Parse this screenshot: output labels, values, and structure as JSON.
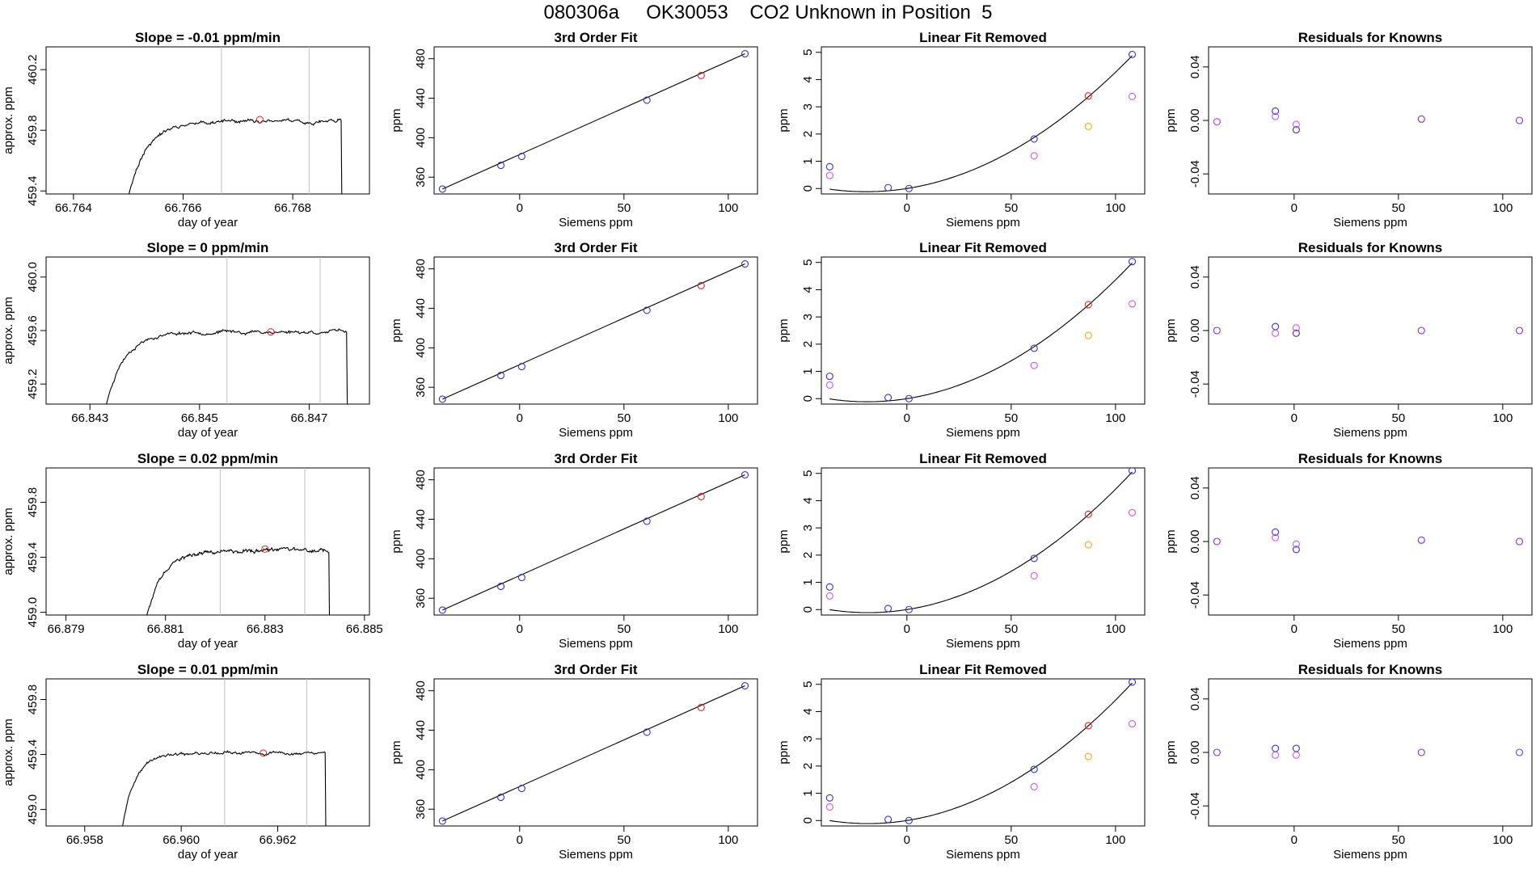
{
  "header": {
    "title": "080306a     OK30053    CO2 Unknown in Position  5"
  },
  "colors": {
    "axis": "#000000",
    "line": "#000000",
    "vline": "#bfbfbf",
    "blue": "#3232cc",
    "red": "#e0261f",
    "magenta": "#d455e8",
    "orange": "#f5a623",
    "purple": "#7a2be8"
  },
  "chart_data": [
    {
      "type": "line",
      "panel": "time-series",
      "row": 0,
      "title": "Slope =  -0.01  ppm/min",
      "xlabel": "day of year",
      "ylabel": "approx. ppm",
      "xlim": [
        66.7635,
        66.7694
      ],
      "ylim": [
        459.38,
        460.35
      ],
      "xticks": [
        66.764,
        66.766,
        66.768
      ],
      "xtick_labels": [
        "66.764",
        "66.766",
        "66.768"
      ],
      "yticks": [
        459.4,
        459.8,
        460.2
      ],
      "ytick_labels": [
        "459.4",
        "459.8",
        "460.2"
      ],
      "trace": {
        "start": 66.7649,
        "end": 66.7689,
        "rise_len": 0.0011,
        "level": 459.86,
        "noise": 0.015,
        "seed": 11
      },
      "vlines": [
        66.7667,
        66.7683
      ],
      "marker": {
        "x": 66.7674,
        "y": 459.87
      }
    },
    {
      "type": "line",
      "panel": "time-series",
      "row": 1,
      "title": "Slope =  0  ppm/min",
      "xlabel": "day of year",
      "ylabel": "approx. ppm",
      "xlim": [
        66.8422,
        66.8481
      ],
      "ylim": [
        459.05,
        460.15
      ],
      "xticks": [
        66.843,
        66.845,
        66.847
      ],
      "xtick_labels": [
        "66.843",
        "66.845",
        "66.847"
      ],
      "yticks": [
        459.2,
        459.6,
        460.0
      ],
      "ytick_labels": [
        "459.2",
        "459.6",
        "460.0"
      ],
      "trace": {
        "start": 66.8432,
        "end": 66.8477,
        "rise_len": 0.0011,
        "level": 459.59,
        "noise": 0.016,
        "seed": 23
      },
      "vlines": [
        66.8455,
        66.8472
      ],
      "marker": {
        "x": 66.8463,
        "y": 459.59
      }
    },
    {
      "type": "line",
      "panel": "time-series",
      "row": 2,
      "title": "Slope =  0.02  ppm/min",
      "xlabel": "day of year",
      "ylabel": "approx. ppm",
      "xlim": [
        66.8786,
        66.8851
      ],
      "ylim": [
        458.98,
        460.05
      ],
      "xticks": [
        66.879,
        66.881,
        66.883,
        66.885
      ],
      "xtick_labels": [
        "66.879",
        "66.881",
        "66.883",
        "66.885"
      ],
      "yticks": [
        459.0,
        459.4,
        459.8
      ],
      "ytick_labels": [
        "459.0",
        "459.4",
        "459.8"
      ],
      "trace": {
        "start": 66.8805,
        "end": 66.8843,
        "rise_len": 0.0012,
        "level": 459.45,
        "noise": 0.018,
        "seed": 37
      },
      "vlines": [
        66.8821,
        66.8838
      ],
      "marker": {
        "x": 66.883,
        "y": 459.46
      }
    },
    {
      "type": "line",
      "panel": "time-series",
      "row": 3,
      "title": "Slope =  0.01  ppm/min",
      "xlabel": "day of year",
      "ylabel": "approx. ppm",
      "xlim": [
        66.9572,
        66.9639
      ],
      "ylim": [
        458.88,
        459.95
      ],
      "xticks": [
        66.958,
        66.96,
        66.962
      ],
      "xtick_labels": [
        "66.958",
        "66.960",
        "66.962"
      ],
      "yticks": [
        459.0,
        459.4,
        459.8
      ],
      "ytick_labels": [
        "459.0",
        "459.4",
        "459.8"
      ],
      "trace": {
        "start": 66.9587,
        "end": 66.963,
        "rise_len": 0.0009,
        "level": 459.41,
        "noise": 0.013,
        "seed": 41
      },
      "vlines": [
        66.9609,
        66.9626
      ],
      "marker": {
        "x": 66.9617,
        "y": 459.41
      }
    },
    {
      "type": "scatter",
      "panel": "third-order-fit",
      "row": 0,
      "title": "3rd Order Fit",
      "xlabel": "Siemens ppm",
      "ylabel": "ppm",
      "xlim": [
        -41,
        114
      ],
      "ylim": [
        343,
        492
      ],
      "xticks": [
        0,
        50,
        100
      ],
      "yticks": [
        360,
        400,
        440,
        480
      ],
      "fit_line": {
        "x": [
          -37,
          108
        ],
        "y": [
          348,
          485
        ]
      },
      "points": [
        {
          "x": -37,
          "y": 348,
          "color": "blue"
        },
        {
          "x": -9,
          "y": 372,
          "color": "blue"
        },
        {
          "x": 1,
          "y": 381,
          "color": "blue"
        },
        {
          "x": 61,
          "y": 438,
          "color": "blue"
        },
        {
          "x": 87,
          "y": 463,
          "color": "red"
        },
        {
          "x": 108,
          "y": 485,
          "color": "blue"
        }
      ]
    },
    {
      "type": "scatter",
      "panel": "third-order-fit",
      "row": 1,
      "title": "3rd Order Fit",
      "xlabel": "Siemens ppm",
      "ylabel": "ppm",
      "xlim": [
        -41,
        114
      ],
      "ylim": [
        343,
        492
      ],
      "xticks": [
        0,
        50,
        100
      ],
      "yticks": [
        360,
        400,
        440,
        480
      ],
      "fit_line": {
        "x": [
          -37,
          108
        ],
        "y": [
          348,
          485
        ]
      },
      "points": [
        {
          "x": -37,
          "y": 348,
          "color": "blue"
        },
        {
          "x": -9,
          "y": 372,
          "color": "blue"
        },
        {
          "x": 1,
          "y": 381,
          "color": "blue"
        },
        {
          "x": 61,
          "y": 438,
          "color": "blue"
        },
        {
          "x": 87,
          "y": 463,
          "color": "red"
        },
        {
          "x": 108,
          "y": 485,
          "color": "blue"
        }
      ]
    },
    {
      "type": "scatter",
      "panel": "third-order-fit",
      "row": 2,
      "title": "3rd Order Fit",
      "xlabel": "Siemens ppm",
      "ylabel": "ppm",
      "xlim": [
        -41,
        114
      ],
      "ylim": [
        343,
        492
      ],
      "xticks": [
        0,
        50,
        100
      ],
      "yticks": [
        360,
        400,
        440,
        480
      ],
      "fit_line": {
        "x": [
          -37,
          108
        ],
        "y": [
          348,
          485
        ]
      },
      "points": [
        {
          "x": -37,
          "y": 348,
          "color": "blue"
        },
        {
          "x": -9,
          "y": 372,
          "color": "blue"
        },
        {
          "x": 1,
          "y": 381,
          "color": "blue"
        },
        {
          "x": 61,
          "y": 438,
          "color": "blue"
        },
        {
          "x": 87,
          "y": 463,
          "color": "red"
        },
        {
          "x": 108,
          "y": 485,
          "color": "blue"
        }
      ]
    },
    {
      "type": "scatter",
      "panel": "third-order-fit",
      "row": 3,
      "title": "3rd Order Fit",
      "xlabel": "Siemens ppm",
      "ylabel": "ppm",
      "xlim": [
        -41,
        114
      ],
      "ylim": [
        343,
        492
      ],
      "xticks": [
        0,
        50,
        100
      ],
      "yticks": [
        360,
        400,
        440,
        480
      ],
      "fit_line": {
        "x": [
          -37,
          108
        ],
        "y": [
          348,
          485
        ]
      },
      "points": [
        {
          "x": -37,
          "y": 348,
          "color": "blue"
        },
        {
          "x": -9,
          "y": 372,
          "color": "blue"
        },
        {
          "x": 1,
          "y": 381,
          "color": "blue"
        },
        {
          "x": 61,
          "y": 438,
          "color": "blue"
        },
        {
          "x": 87,
          "y": 463,
          "color": "red"
        },
        {
          "x": 108,
          "y": 485,
          "color": "blue"
        }
      ]
    },
    {
      "type": "scatter",
      "panel": "linear-fit-removed",
      "row": 0,
      "title": "Linear Fit Removed",
      "xlabel": "Siemens ppm",
      "ylabel": "ppm",
      "xlim": [
        -41,
        114
      ],
      "ylim": [
        -0.2,
        5.2
      ],
      "xticks": [
        0,
        50,
        100
      ],
      "yticks": [
        0,
        1,
        2,
        3,
        4,
        5
      ],
      "curve": {
        "coef": [
          0.0,
          0.012,
          0.000307
        ],
        "x_range": [
          -37,
          108
        ]
      },
      "points": [
        {
          "x": -37,
          "y": 0.8,
          "color": "blue"
        },
        {
          "x": -9,
          "y": 0.03,
          "color": "blue"
        },
        {
          "x": 1,
          "y": 0.0,
          "color": "blue"
        },
        {
          "x": 61,
          "y": 1.82,
          "color": "blue"
        },
        {
          "x": 108,
          "y": 4.92,
          "color": "blue"
        },
        {
          "x": 87,
          "y": 3.4,
          "color": "red"
        },
        {
          "x": -37,
          "y": 0.48,
          "color": "magenta"
        },
        {
          "x": 61,
          "y": 1.2,
          "color": "magenta"
        },
        {
          "x": 108,
          "y": 3.38,
          "color": "magenta"
        },
        {
          "x": 87,
          "y": 2.28,
          "color": "orange"
        }
      ]
    },
    {
      "type": "scatter",
      "panel": "linear-fit-removed",
      "row": 1,
      "title": "Linear Fit Removed",
      "xlabel": "Siemens ppm",
      "ylabel": "ppm",
      "xlim": [
        -41,
        114
      ],
      "ylim": [
        -0.2,
        5.2
      ],
      "xticks": [
        0,
        50,
        100
      ],
      "yticks": [
        0,
        1,
        2,
        3,
        4,
        5
      ],
      "curve": {
        "coef": [
          0.0,
          0.012,
          0.000316
        ],
        "x_range": [
          -37,
          108
        ]
      },
      "points": [
        {
          "x": -37,
          "y": 0.82,
          "color": "blue"
        },
        {
          "x": -9,
          "y": 0.04,
          "color": "blue"
        },
        {
          "x": 1,
          "y": 0.0,
          "color": "blue"
        },
        {
          "x": 61,
          "y": 1.85,
          "color": "blue"
        },
        {
          "x": 108,
          "y": 5.03,
          "color": "blue"
        },
        {
          "x": 87,
          "y": 3.45,
          "color": "red"
        },
        {
          "x": -37,
          "y": 0.5,
          "color": "magenta"
        },
        {
          "x": 61,
          "y": 1.22,
          "color": "magenta"
        },
        {
          "x": 108,
          "y": 3.48,
          "color": "magenta"
        },
        {
          "x": 87,
          "y": 2.32,
          "color": "orange"
        }
      ]
    },
    {
      "type": "scatter",
      "panel": "linear-fit-removed",
      "row": 2,
      "title": "Linear Fit Removed",
      "xlabel": "Siemens ppm",
      "ylabel": "ppm",
      "xlim": [
        -41,
        114
      ],
      "ylim": [
        -0.2,
        5.2
      ],
      "xticks": [
        0,
        50,
        100
      ],
      "yticks": [
        0,
        1,
        2,
        3,
        4,
        5
      ],
      "curve": {
        "coef": [
          0.0,
          0.012,
          0.000322
        ],
        "x_range": [
          -37,
          108
        ]
      },
      "points": [
        {
          "x": -37,
          "y": 0.83,
          "color": "blue"
        },
        {
          "x": -9,
          "y": 0.04,
          "color": "blue"
        },
        {
          "x": 1,
          "y": 0.0,
          "color": "blue"
        },
        {
          "x": 61,
          "y": 1.88,
          "color": "blue"
        },
        {
          "x": 108,
          "y": 5.1,
          "color": "blue"
        },
        {
          "x": 87,
          "y": 3.5,
          "color": "red"
        },
        {
          "x": -37,
          "y": 0.5,
          "color": "magenta"
        },
        {
          "x": 61,
          "y": 1.24,
          "color": "magenta"
        },
        {
          "x": 108,
          "y": 3.56,
          "color": "magenta"
        },
        {
          "x": 87,
          "y": 2.38,
          "color": "orange"
        }
      ]
    },
    {
      "type": "scatter",
      "panel": "linear-fit-removed",
      "row": 3,
      "title": "Linear Fit Removed",
      "xlabel": "Siemens ppm",
      "ylabel": "ppm",
      "xlim": [
        -41,
        114
      ],
      "ylim": [
        -0.2,
        5.2
      ],
      "xticks": [
        0,
        50,
        100
      ],
      "yticks": [
        0,
        1,
        2,
        3,
        4,
        5
      ],
      "curve": {
        "coef": [
          0.0,
          0.012,
          0.000322
        ],
        "x_range": [
          -37,
          108
        ]
      },
      "points": [
        {
          "x": -37,
          "y": 0.83,
          "color": "blue"
        },
        {
          "x": -9,
          "y": 0.04,
          "color": "blue"
        },
        {
          "x": 1,
          "y": 0.0,
          "color": "blue"
        },
        {
          "x": 61,
          "y": 1.88,
          "color": "blue"
        },
        {
          "x": 108,
          "y": 5.08,
          "color": "blue"
        },
        {
          "x": 87,
          "y": 3.48,
          "color": "red"
        },
        {
          "x": -37,
          "y": 0.5,
          "color": "magenta"
        },
        {
          "x": 61,
          "y": 1.24,
          "color": "magenta"
        },
        {
          "x": 108,
          "y": 3.55,
          "color": "magenta"
        },
        {
          "x": 87,
          "y": 2.35,
          "color": "orange"
        }
      ]
    },
    {
      "type": "scatter",
      "panel": "residuals",
      "row": 0,
      "title": "Residuals for Knowns",
      "xlabel": "Siemens ppm",
      "ylabel": "ppm",
      "xlim": [
        -41,
        114
      ],
      "ylim": [
        -0.055,
        0.055
      ],
      "xticks": [
        0,
        50,
        100
      ],
      "yticks": [
        -0.04,
        0.0,
        0.04
      ],
      "ytick_labels": [
        "-0.04",
        "0.00",
        "0.04"
      ],
      "points": [
        {
          "x": -37,
          "y": -0.001,
          "color": "blue"
        },
        {
          "x": -37,
          "y": -0.001,
          "color": "magenta"
        },
        {
          "x": -9,
          "y": 0.007,
          "color": "blue"
        },
        {
          "x": -9,
          "y": 0.003,
          "color": "magenta"
        },
        {
          "x": 1,
          "y": -0.007,
          "color": "blue"
        },
        {
          "x": 1,
          "y": -0.003,
          "color": "magenta"
        },
        {
          "x": 61,
          "y": 0.001,
          "color": "purple"
        },
        {
          "x": 108,
          "y": 0.0,
          "color": "purple"
        }
      ]
    },
    {
      "type": "scatter",
      "panel": "residuals",
      "row": 1,
      "title": "Residuals for Knowns",
      "xlabel": "Siemens ppm",
      "ylabel": "ppm",
      "xlim": [
        -41,
        114
      ],
      "ylim": [
        -0.055,
        0.055
      ],
      "xticks": [
        0,
        50,
        100
      ],
      "yticks": [
        -0.04,
        0.0,
        0.04
      ],
      "ytick_labels": [
        "-0.04",
        "0.00",
        "0.04"
      ],
      "points": [
        {
          "x": -37,
          "y": 0.0,
          "color": "purple"
        },
        {
          "x": -9,
          "y": 0.003,
          "color": "blue"
        },
        {
          "x": -9,
          "y": -0.002,
          "color": "magenta"
        },
        {
          "x": 1,
          "y": -0.002,
          "color": "blue"
        },
        {
          "x": 1,
          "y": 0.002,
          "color": "magenta"
        },
        {
          "x": 61,
          "y": 0.0,
          "color": "purple"
        },
        {
          "x": 108,
          "y": 0.0,
          "color": "purple"
        }
      ]
    },
    {
      "type": "scatter",
      "panel": "residuals",
      "row": 2,
      "title": "Residuals for Knowns",
      "xlabel": "Siemens ppm",
      "ylabel": "ppm",
      "xlim": [
        -41,
        114
      ],
      "ylim": [
        -0.055,
        0.055
      ],
      "xticks": [
        0,
        50,
        100
      ],
      "yticks": [
        -0.04,
        0.0,
        0.04
      ],
      "ytick_labels": [
        "-0.04",
        "0.00",
        "0.04"
      ],
      "points": [
        {
          "x": -37,
          "y": 0.0,
          "color": "purple"
        },
        {
          "x": -9,
          "y": 0.007,
          "color": "blue"
        },
        {
          "x": -9,
          "y": 0.003,
          "color": "magenta"
        },
        {
          "x": 1,
          "y": -0.006,
          "color": "blue"
        },
        {
          "x": 1,
          "y": -0.002,
          "color": "magenta"
        },
        {
          "x": 61,
          "y": 0.001,
          "color": "purple"
        },
        {
          "x": 108,
          "y": 0.0,
          "color": "purple"
        }
      ]
    },
    {
      "type": "scatter",
      "panel": "residuals",
      "row": 3,
      "title": "Residuals for Knowns",
      "xlabel": "Siemens ppm",
      "ylabel": "ppm",
      "xlim": [
        -41,
        114
      ],
      "ylim": [
        -0.055,
        0.055
      ],
      "xticks": [
        0,
        50,
        100
      ],
      "yticks": [
        -0.04,
        0.0,
        0.04
      ],
      "ytick_labels": [
        "-0.04",
        "0.00",
        "0.04"
      ],
      "points": [
        {
          "x": -37,
          "y": 0.0,
          "color": "purple"
        },
        {
          "x": -9,
          "y": 0.003,
          "color": "blue"
        },
        {
          "x": -9,
          "y": -0.002,
          "color": "magenta"
        },
        {
          "x": 1,
          "y": 0.003,
          "color": "blue"
        },
        {
          "x": 1,
          "y": -0.002,
          "color": "magenta"
        },
        {
          "x": 61,
          "y": 0.0,
          "color": "purple"
        },
        {
          "x": 108,
          "y": 0.0,
          "color": "purple"
        }
      ]
    }
  ]
}
